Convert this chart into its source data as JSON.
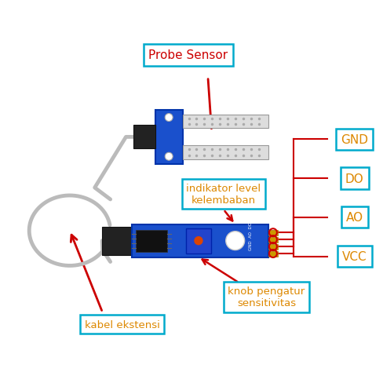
{
  "bg_color": "#ffffff",
  "labels": {
    "probe_sensor": "Probe Sensor",
    "indikator": "indikator level\nkelembaban",
    "kabel": "kabel ekstensi",
    "knob": "knob pengatur\nsensitivitas",
    "GND": "GND",
    "DO": "DO",
    "AO": "AO",
    "VCC": "VCC"
  },
  "label_colors": {
    "probe_sensor_text": "#cc0000",
    "probe_sensor_box": "#00aacc",
    "indikator_text": "#dd8800",
    "indikator_box": "#00aacc",
    "kabel_text": "#dd8800",
    "kabel_box": "#00aacc",
    "knob_text": "#dd8800",
    "knob_box": "#00aacc",
    "pin_text": "#dd8800",
    "pin_box": "#00aacc"
  },
  "arrow_color": "#cc0000",
  "wire_color": "#cc0000",
  "cable_color": "#bbbbbb",
  "probe_pcb_color": "#1a50cc",
  "ctrl_pcb_color": "#1a50cc",
  "black_conn_color": "#222222",
  "prong_color": "#dddddd",
  "prong_edge_color": "#999999"
}
